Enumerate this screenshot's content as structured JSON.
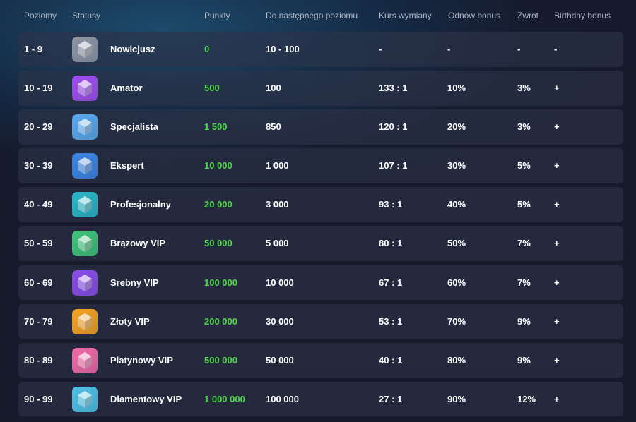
{
  "headers": {
    "levels": "Poziomy",
    "status": "Statusy",
    "points": "Punkty",
    "next": "Do następnego poziomu",
    "rate": "Kurs wymiany",
    "bonus": "Odnów bonus",
    "cashback": "Zwrot",
    "birthday": "Birthday bonus"
  },
  "rows": [
    {
      "levels": "1 - 9",
      "status": "Nowicjusz",
      "points": "0",
      "next": "10 - 100",
      "rate": "-",
      "bonus": "-",
      "cashback": "-",
      "birthday": "-",
      "icon": "gray-block-icon",
      "color": "#8e96a4"
    },
    {
      "levels": "10 - 19",
      "status": "Amator",
      "points": "500",
      "next": "100",
      "rate": "133 : 1",
      "bonus": "10%",
      "cashback": "3%",
      "birthday": "+",
      "icon": "purple-cube-icon",
      "color": "#a14ef0"
    },
    {
      "levels": "20 - 29",
      "status": "Specjalista",
      "points": "1 500",
      "next": "850",
      "rate": "120 : 1",
      "bonus": "20%",
      "cashback": "3%",
      "birthday": "+",
      "icon": "blue-crystals-icon",
      "color": "#5aa9ef"
    },
    {
      "levels": "30 - 39",
      "status": "Ekspert",
      "points": "10 000",
      "next": "1 000",
      "rate": "107 : 1",
      "bonus": "30%",
      "cashback": "5%",
      "birthday": "+",
      "icon": "blue-crystal-cluster-icon",
      "color": "#3b86e6"
    },
    {
      "levels": "40 - 49",
      "status": "Profesjonalny",
      "points": "20 000",
      "next": "3 000",
      "rate": "93 : 1",
      "bonus": "40%",
      "cashback": "5%",
      "birthday": "+",
      "icon": "teal-diamond-icon",
      "color": "#2ab7c8"
    },
    {
      "levels": "50 - 59",
      "status": "Brązowy VIP",
      "points": "50 000",
      "next": "5 000",
      "rate": "80 : 1",
      "bonus": "50%",
      "cashback": "7%",
      "birthday": "+",
      "icon": "green-crystals-icon",
      "color": "#3fc47a"
    },
    {
      "levels": "60 - 69",
      "status": "Srebny VIP",
      "points": "100 000",
      "next": "10 000",
      "rate": "67 : 1",
      "bonus": "60%",
      "cashback": "7%",
      "birthday": "+",
      "icon": "purple-crystals-icon",
      "color": "#8a4de8"
    },
    {
      "levels": "70 - 79",
      "status": "Złoty VIP",
      "points": "200 000",
      "next": "30 000",
      "rate": "53 : 1",
      "bonus": "70%",
      "cashback": "9%",
      "birthday": "+",
      "icon": "gold-crystals-icon",
      "color": "#f5a324"
    },
    {
      "levels": "80 - 89",
      "status": "Platynowy VIP",
      "points": "500 000",
      "next": "50 000",
      "rate": "40 : 1",
      "bonus": "80%",
      "cashback": "9%",
      "birthday": "+",
      "icon": "pink-crystals-icon",
      "color": "#f06aa8"
    },
    {
      "levels": "90 - 99",
      "status": "Diamentowy VIP",
      "points": "1 000 000",
      "next": "100 000",
      "rate": "27 : 1",
      "bonus": "90%",
      "cashback": "12%",
      "birthday": "+",
      "icon": "rainbow-crystals-icon",
      "color": "#4ec3e8"
    }
  ]
}
